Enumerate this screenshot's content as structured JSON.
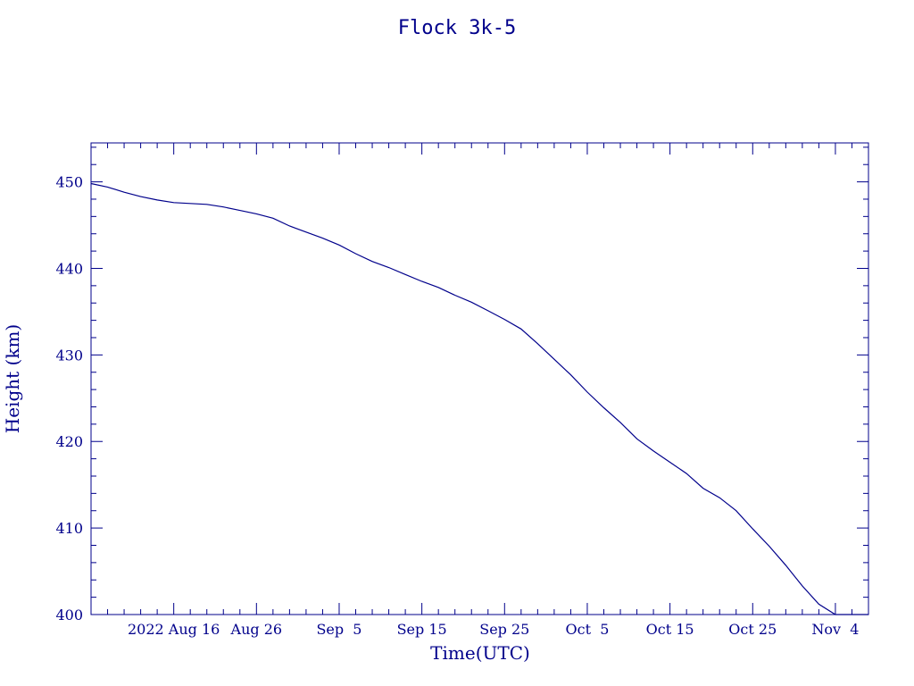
{
  "chart_data": {
    "type": "line",
    "title": "Flock 3k-5",
    "xlabel": "Time(UTC)",
    "ylabel": "Height (km)",
    "xlim": [
      "2022-08-06",
      "2022-11-08"
    ],
    "ylim": [
      400,
      454.5
    ],
    "grid": false,
    "colors": {
      "axis": "#00008b",
      "line": "#00008b",
      "background": "#ffffff"
    },
    "xticks": [
      {
        "date": "2022-08-16",
        "label": "2022 Aug 16"
      },
      {
        "date": "2022-08-26",
        "label": "Aug 26"
      },
      {
        "date": "2022-09-05",
        "label": "Sep  5"
      },
      {
        "date": "2022-09-15",
        "label": "Sep 15"
      },
      {
        "date": "2022-09-25",
        "label": "Sep 25"
      },
      {
        "date": "2022-10-05",
        "label": "Oct  5"
      },
      {
        "date": "2022-10-15",
        "label": "Oct 15"
      },
      {
        "date": "2022-10-25",
        "label": "Oct 25"
      },
      {
        "date": "2022-11-04",
        "label": "Nov  4"
      }
    ],
    "yticks": [
      {
        "value": 400,
        "label": "400"
      },
      {
        "value": 410,
        "label": "410"
      },
      {
        "value": 420,
        "label": "420"
      },
      {
        "value": 430,
        "label": "430"
      },
      {
        "value": 440,
        "label": "440"
      },
      {
        "value": 450,
        "label": "450"
      }
    ],
    "series": [
      {
        "x": [
          "2022-08-06",
          "2022-08-08",
          "2022-08-10",
          "2022-08-12",
          "2022-08-14",
          "2022-08-16",
          "2022-08-18",
          "2022-08-20",
          "2022-08-22",
          "2022-08-24",
          "2022-08-26",
          "2022-08-28",
          "2022-08-30",
          "2022-09-01",
          "2022-09-03",
          "2022-09-05",
          "2022-09-07",
          "2022-09-09",
          "2022-09-11",
          "2022-09-13",
          "2022-09-15",
          "2022-09-17",
          "2022-09-19",
          "2022-09-21",
          "2022-09-23",
          "2022-09-25",
          "2022-09-27",
          "2022-09-29",
          "2022-10-01",
          "2022-10-03",
          "2022-10-05",
          "2022-10-07",
          "2022-10-09",
          "2022-10-11",
          "2022-10-13",
          "2022-10-15",
          "2022-10-17",
          "2022-10-19",
          "2022-10-21",
          "2022-10-23",
          "2022-10-25",
          "2022-10-27",
          "2022-10-29",
          "2022-10-31",
          "2022-11-02",
          "2022-11-04",
          "2022-11-06",
          "2022-11-08"
        ],
        "y": [
          449.8,
          449.4,
          448.8,
          448.3,
          447.9,
          447.6,
          447.5,
          447.4,
          447.1,
          446.7,
          446.3,
          445.8,
          444.9,
          444.2,
          443.5,
          442.7,
          441.7,
          440.8,
          440.1,
          439.3,
          438.5,
          437.8,
          436.9,
          436.1,
          435.1,
          434.1,
          433.0,
          431.3,
          429.5,
          427.7,
          425.7,
          423.9,
          422.2,
          420.3,
          418.9,
          417.6,
          416.3,
          414.6,
          413.5,
          412.0,
          409.9,
          407.9,
          405.7,
          403.3,
          401.2,
          400.0,
          400.0,
          400.0
        ]
      }
    ]
  }
}
